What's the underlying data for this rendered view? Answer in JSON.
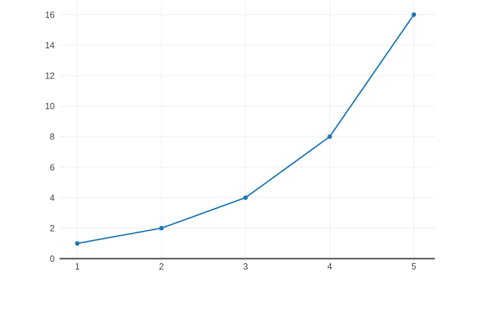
{
  "page": {
    "background_color": "#ffffff"
  },
  "chart_data": {
    "type": "line",
    "title": "",
    "xlabel": "",
    "ylabel": "",
    "series": [
      {
        "name": "trace-0",
        "x": [
          1,
          2,
          3,
          4,
          5
        ],
        "y": [
          1,
          2,
          4,
          8,
          16
        ],
        "line_color": "#1f77b4",
        "marker_color": "#1f77b4",
        "line_width": 2,
        "marker_diameter": 6.5,
        "mode": "lines+markers"
      }
    ],
    "x_ticks": [
      "1",
      "2",
      "3",
      "4",
      "5"
    ],
    "x_tick_values": [
      1,
      2,
      3,
      4,
      5
    ],
    "y_ticks": [
      "0",
      "2",
      "4",
      "6",
      "8",
      "10",
      "12",
      "14",
      "16"
    ],
    "y_tick_values": [
      0,
      2,
      4,
      6,
      8,
      10,
      12,
      14,
      16
    ],
    "xlim": [
      0.79,
      5.25
    ],
    "ylim": [
      0,
      16.96
    ],
    "grid": true,
    "legend": false,
    "grid_color": "#eeeeee",
    "zeroline_color": "#444444",
    "tick_label_color": "#444444",
    "plot_background": "#ffffff"
  }
}
